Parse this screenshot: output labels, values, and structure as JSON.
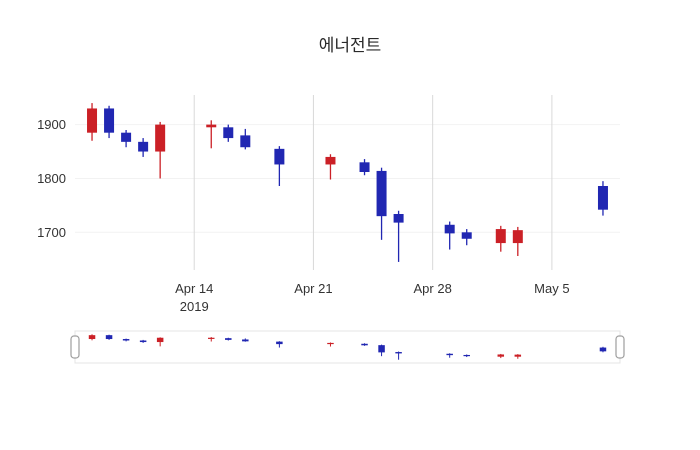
{
  "chart_data": {
    "type": "candlestick",
    "title": "에너전트",
    "xlabel": "",
    "ylabel": "",
    "xlim": [
      "2019-04-07",
      "2019-05-09"
    ],
    "ylim": [
      1630,
      1955
    ],
    "grid": "on",
    "legend": "none",
    "rangeslider": true,
    "x_ticks": [
      {
        "label": "Apr 14",
        "sublabel": "2019",
        "date": "2019-04-14"
      },
      {
        "label": "Apr 21",
        "date": "2019-04-21"
      },
      {
        "label": "Apr 28",
        "date": "2019-04-28"
      },
      {
        "label": "May 5",
        "date": "2019-05-05"
      }
    ],
    "y_ticks": [
      1900,
      1800,
      1700
    ],
    "colors": {
      "up": "#cb2026",
      "down": "#2127b2",
      "grid": "#d9d9d9",
      "grid_h": "#f2f2f2",
      "tick": "#333333",
      "slider_frame": "#e4e4e4",
      "handle": "#9e9e9e"
    },
    "candles": [
      {
        "date": "2019-04-08",
        "open": 1885,
        "high": 1940,
        "low": 1870,
        "close": 1930
      },
      {
        "date": "2019-04-09",
        "open": 1930,
        "high": 1935,
        "low": 1875,
        "close": 1885
      },
      {
        "date": "2019-04-10",
        "open": 1885,
        "high": 1890,
        "low": 1858,
        "close": 1868
      },
      {
        "date": "2019-04-11",
        "open": 1868,
        "high": 1875,
        "low": 1840,
        "close": 1850
      },
      {
        "date": "2019-04-12",
        "open": 1850,
        "high": 1905,
        "low": 1800,
        "close": 1900
      },
      {
        "date": "2019-04-15",
        "open": 1895,
        "high": 1908,
        "low": 1856,
        "close": 1900
      },
      {
        "date": "2019-04-16",
        "open": 1895,
        "high": 1900,
        "low": 1868,
        "close": 1875
      },
      {
        "date": "2019-04-17",
        "open": 1880,
        "high": 1892,
        "low": 1854,
        "close": 1858
      },
      {
        "date": "2019-04-19",
        "open": 1855,
        "high": 1860,
        "low": 1786,
        "close": 1826
      },
      {
        "date": "2019-04-22",
        "open": 1826,
        "high": 1845,
        "low": 1798,
        "close": 1840
      },
      {
        "date": "2019-04-24",
        "open": 1830,
        "high": 1836,
        "low": 1806,
        "close": 1812
      },
      {
        "date": "2019-04-25",
        "open": 1814,
        "high": 1820,
        "low": 1686,
        "close": 1730
      },
      {
        "date": "2019-04-26",
        "open": 1734,
        "high": 1740,
        "low": 1645,
        "close": 1718
      },
      {
        "date": "2019-04-29",
        "open": 1714,
        "high": 1720,
        "low": 1668,
        "close": 1698
      },
      {
        "date": "2019-04-30",
        "open": 1700,
        "high": 1706,
        "low": 1676,
        "close": 1688
      },
      {
        "date": "2019-05-02",
        "open": 1680,
        "high": 1712,
        "low": 1664,
        "close": 1706
      },
      {
        "date": "2019-05-03",
        "open": 1680,
        "high": 1710,
        "low": 1656,
        "close": 1704
      },
      {
        "date": "2019-05-08",
        "open": 1786,
        "high": 1795,
        "low": 1731,
        "close": 1742
      }
    ]
  }
}
